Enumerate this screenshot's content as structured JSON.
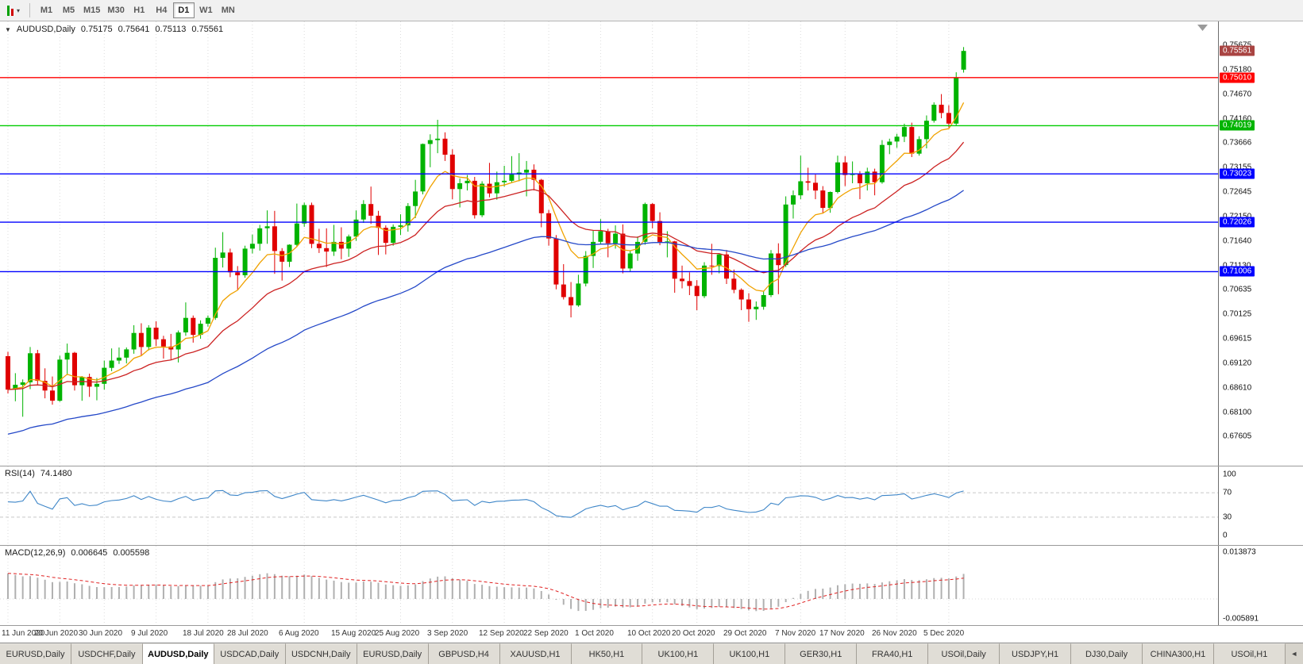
{
  "toolbar": {
    "caret": "▾",
    "timeframes": [
      "M1",
      "M5",
      "M15",
      "M30",
      "H1",
      "H4",
      "D1",
      "W1",
      "MN"
    ],
    "active": "D1"
  },
  "chart": {
    "marker_glyph": "▼",
    "title_symbol": "AUDUSD,Daily",
    "open": "0.75175",
    "high": "0.75641",
    "low": "0.75113",
    "close": "0.75561"
  },
  "chart_data": {
    "type": "candlestick",
    "symbol": "AUDUSD",
    "timeframe": "Daily",
    "price_range": [
      0.67,
      0.7617
    ],
    "current_price": 0.75561,
    "price_ticks": [
      "0.75675",
      "0.75180",
      "0.74670",
      "0.74160",
      "0.73666",
      "0.73155",
      "0.72645",
      "0.72150",
      "0.71640",
      "0.71130",
      "0.70635",
      "0.70125",
      "0.69615",
      "0.69120",
      "0.68610",
      "0.68100",
      "0.67605"
    ],
    "price_tags": [
      {
        "value": 0.75561,
        "label": "0.75561",
        "color": "#a94442",
        "type": "current-price"
      },
      {
        "value": 0.7501,
        "label": "0.75010",
        "color": "#ff0000",
        "type": "resistance-level"
      },
      {
        "value": 0.74019,
        "label": "0.74019",
        "color": "#00b400",
        "type": "support-level"
      },
      {
        "value": 0.73023,
        "label": "0.73023",
        "color": "#0000ff",
        "type": "level"
      },
      {
        "value": 0.72026,
        "label": "0.72026",
        "color": "#0000ff",
        "type": "level"
      },
      {
        "value": 0.71006,
        "label": "0.71006",
        "color": "#0000ff",
        "type": "level"
      }
    ],
    "hlines": [
      {
        "value": 0.7501,
        "color": "#ff0000"
      },
      {
        "value": 0.74019,
        "color": "#00cc00"
      },
      {
        "value": 0.73023,
        "color": "#0000ff"
      },
      {
        "value": 0.72026,
        "color": "#0000ff"
      },
      {
        "value": 0.71006,
        "color": "#0000ff"
      }
    ],
    "date_ticks": [
      {
        "label": "11 Jun 2020",
        "index": 0
      },
      {
        "label": "20 Jun 2020",
        "index": 7
      },
      {
        "label": "30 Jun 2020",
        "index": 13
      },
      {
        "label": "9 Jul 2020",
        "index": 20
      },
      {
        "label": "18 Jul 2020",
        "index": 27
      },
      {
        "label": "28 Jul 2020",
        "index": 33
      },
      {
        "label": "6 Aug 2020",
        "index": 40
      },
      {
        "label": "15 Aug 2020",
        "index": 47
      },
      {
        "label": "25 Aug 2020",
        "index": 53
      },
      {
        "label": "3 Sep 2020",
        "index": 60
      },
      {
        "label": "12 Sep 2020",
        "index": 67
      },
      {
        "label": "22 Sep 2020",
        "index": 73
      },
      {
        "label": "1 Oct 2020",
        "index": 80
      },
      {
        "label": "10 Oct 2020",
        "index": 87
      },
      {
        "label": "20 Oct 2020",
        "index": 93
      },
      {
        "label": "29 Oct 2020",
        "index": 100
      },
      {
        "label": "7 Nov 2020",
        "index": 107
      },
      {
        "label": "17 Nov 2020",
        "index": 113
      },
      {
        "label": "26 Nov 2020",
        "index": 120
      },
      {
        "label": "5 Dec 2020",
        "index": 127
      }
    ],
    "moving_averages": [
      {
        "name": "fast-orange",
        "period": 8,
        "color": "#f0a200"
      },
      {
        "name": "mid-red",
        "period": 21,
        "color": "#cc2222"
      },
      {
        "name": "slow-blue",
        "period": 55,
        "color": "#2448c8",
        "seed": 0.6765
      }
    ],
    "colors": {
      "bull": "#00b300",
      "bear": "#e00000",
      "grid": "#dcdcdc"
    },
    "candles": [
      [
        0.6926,
        0.6935,
        0.6849,
        0.6857
      ],
      [
        0.6857,
        0.6891,
        0.6833,
        0.6867
      ],
      [
        0.6867,
        0.6878,
        0.6801,
        0.6872
      ],
      [
        0.6872,
        0.6945,
        0.6858,
        0.6932
      ],
      [
        0.6932,
        0.6939,
        0.6866,
        0.6875
      ],
      [
        0.6875,
        0.6901,
        0.6839,
        0.6855
      ],
      [
        0.6855,
        0.6884,
        0.6826,
        0.6834
      ],
      [
        0.6834,
        0.6927,
        0.6832,
        0.6919
      ],
      [
        0.6919,
        0.6952,
        0.6887,
        0.6933
      ],
      [
        0.6933,
        0.6935,
        0.6855,
        0.6866
      ],
      [
        0.6866,
        0.6885,
        0.6834,
        0.6883
      ],
      [
        0.6883,
        0.689,
        0.6842,
        0.6863
      ],
      [
        0.6863,
        0.6881,
        0.6835,
        0.6869
      ],
      [
        0.6869,
        0.6917,
        0.6857,
        0.6902
      ],
      [
        0.6902,
        0.6942,
        0.6895,
        0.6917
      ],
      [
        0.6917,
        0.6944,
        0.691,
        0.6923
      ],
      [
        0.6923,
        0.6944,
        0.6911,
        0.694
      ],
      [
        0.694,
        0.699,
        0.6931,
        0.6974
      ],
      [
        0.6974,
        0.6994,
        0.6926,
        0.6945
      ],
      [
        0.6945,
        0.699,
        0.6938,
        0.6985
      ],
      [
        0.6985,
        0.6998,
        0.6947,
        0.6961
      ],
      [
        0.6961,
        0.6968,
        0.6921,
        0.6946
      ],
      [
        0.6946,
        0.6972,
        0.6919,
        0.694
      ],
      [
        0.694,
        0.6979,
        0.6913,
        0.6975
      ],
      [
        0.6975,
        0.7037,
        0.6968,
        0.7005
      ],
      [
        0.7005,
        0.701,
        0.6954,
        0.697
      ],
      [
        0.697,
        0.7,
        0.6962,
        0.6993
      ],
      [
        0.6993,
        0.701,
        0.6987,
        0.7005
      ],
      [
        0.7005,
        0.715,
        0.7001,
        0.7129
      ],
      [
        0.7129,
        0.7182,
        0.7109,
        0.714
      ],
      [
        0.714,
        0.7148,
        0.7089,
        0.7099
      ],
      [
        0.7099,
        0.7112,
        0.7063,
        0.7093
      ],
      [
        0.7093,
        0.7154,
        0.7088,
        0.7148
      ],
      [
        0.7148,
        0.7177,
        0.7138,
        0.7158
      ],
      [
        0.7158,
        0.7197,
        0.7144,
        0.719
      ],
      [
        0.719,
        0.7227,
        0.7158,
        0.7194
      ],
      [
        0.7194,
        0.7226,
        0.7096,
        0.7143
      ],
      [
        0.7143,
        0.7149,
        0.7082,
        0.7121
      ],
      [
        0.7121,
        0.7157,
        0.711,
        0.7156
      ],
      [
        0.7156,
        0.7241,
        0.7152,
        0.72
      ],
      [
        0.72,
        0.7243,
        0.7193,
        0.7238
      ],
      [
        0.7238,
        0.7243,
        0.7149,
        0.7158
      ],
      [
        0.7158,
        0.7189,
        0.7139,
        0.7149
      ],
      [
        0.7149,
        0.719,
        0.711,
        0.7142
      ],
      [
        0.7142,
        0.7197,
        0.7133,
        0.7162
      ],
      [
        0.7162,
        0.7192,
        0.7126,
        0.7148
      ],
      [
        0.7148,
        0.7177,
        0.7131,
        0.7173
      ],
      [
        0.7173,
        0.7227,
        0.7164,
        0.7208
      ],
      [
        0.7208,
        0.7248,
        0.7201,
        0.724
      ],
      [
        0.724,
        0.7276,
        0.7199,
        0.7216
      ],
      [
        0.7216,
        0.7226,
        0.7135,
        0.7191
      ],
      [
        0.7191,
        0.7196,
        0.7136,
        0.716
      ],
      [
        0.716,
        0.7198,
        0.7154,
        0.7193
      ],
      [
        0.7193,
        0.7219,
        0.7176,
        0.7196
      ],
      [
        0.7196,
        0.7242,
        0.7183,
        0.7236
      ],
      [
        0.7236,
        0.729,
        0.7211,
        0.7266
      ],
      [
        0.7266,
        0.7365,
        0.726,
        0.7364
      ],
      [
        0.7364,
        0.7384,
        0.7316,
        0.7372
      ],
      [
        0.7372,
        0.7414,
        0.7345,
        0.7375
      ],
      [
        0.7375,
        0.7388,
        0.7329,
        0.7342
      ],
      [
        0.7342,
        0.7353,
        0.725,
        0.7271
      ],
      [
        0.7271,
        0.7293,
        0.7233,
        0.7283
      ],
      [
        0.7283,
        0.73,
        0.7268,
        0.7288
      ],
      [
        0.7288,
        0.7296,
        0.721,
        0.7217
      ],
      [
        0.7217,
        0.7287,
        0.7213,
        0.7282
      ],
      [
        0.7282,
        0.7325,
        0.7254,
        0.7262
      ],
      [
        0.7262,
        0.7307,
        0.7249,
        0.7285
      ],
      [
        0.7285,
        0.7319,
        0.7276,
        0.7288
      ],
      [
        0.7288,
        0.7339,
        0.7284,
        0.7301
      ],
      [
        0.7301,
        0.7345,
        0.7287,
        0.7305
      ],
      [
        0.7305,
        0.7329,
        0.7256,
        0.7311
      ],
      [
        0.7311,
        0.7322,
        0.7268,
        0.729
      ],
      [
        0.729,
        0.7292,
        0.7192,
        0.7221
      ],
      [
        0.7221,
        0.7228,
        0.7154,
        0.7169
      ],
      [
        0.7169,
        0.7176,
        0.7064,
        0.7074
      ],
      [
        0.7074,
        0.7116,
        0.7043,
        0.7048
      ],
      [
        0.7048,
        0.7079,
        0.7006,
        0.7031
      ],
      [
        0.7031,
        0.7094,
        0.7028,
        0.7076
      ],
      [
        0.7076,
        0.7143,
        0.707,
        0.7133
      ],
      [
        0.7133,
        0.7185,
        0.7108,
        0.7162
      ],
      [
        0.7162,
        0.7209,
        0.7156,
        0.7184
      ],
      [
        0.7184,
        0.7189,
        0.713,
        0.7159
      ],
      [
        0.7159,
        0.7196,
        0.7148,
        0.7179
      ],
      [
        0.7179,
        0.7198,
        0.7097,
        0.7107
      ],
      [
        0.7107,
        0.7144,
        0.71,
        0.7138
      ],
      [
        0.7138,
        0.7173,
        0.7123,
        0.7162
      ],
      [
        0.7162,
        0.7243,
        0.7156,
        0.724
      ],
      [
        0.724,
        0.7242,
        0.719,
        0.7205
      ],
      [
        0.7205,
        0.7223,
        0.7155,
        0.7162
      ],
      [
        0.7162,
        0.7184,
        0.713,
        0.7163
      ],
      [
        0.7163,
        0.7164,
        0.7057,
        0.7086
      ],
      [
        0.7086,
        0.7113,
        0.7066,
        0.7081
      ],
      [
        0.7081,
        0.7099,
        0.7052,
        0.7071
      ],
      [
        0.7071,
        0.7083,
        0.7021,
        0.705
      ],
      [
        0.705,
        0.712,
        0.7046,
        0.7113
      ],
      [
        0.7113,
        0.7158,
        0.7094,
        0.7112
      ],
      [
        0.7112,
        0.7137,
        0.7097,
        0.7136
      ],
      [
        0.7136,
        0.7145,
        0.7075,
        0.7086
      ],
      [
        0.7086,
        0.7105,
        0.7056,
        0.7063
      ],
      [
        0.7063,
        0.7066,
        0.7021,
        0.7043
      ],
      [
        0.7043,
        0.7056,
        0.6997,
        0.7023
      ],
      [
        0.7023,
        0.7039,
        0.7001,
        0.7028
      ],
      [
        0.7028,
        0.706,
        0.7022,
        0.7052
      ],
      [
        0.7052,
        0.7145,
        0.7048,
        0.7138
      ],
      [
        0.7138,
        0.7159,
        0.7054,
        0.7114
      ],
      [
        0.7114,
        0.7256,
        0.711,
        0.7239
      ],
      [
        0.7239,
        0.7268,
        0.721,
        0.7258
      ],
      [
        0.7258,
        0.734,
        0.725,
        0.7287
      ],
      [
        0.7287,
        0.7315,
        0.7268,
        0.7284
      ],
      [
        0.7284,
        0.7301,
        0.725,
        0.7268
      ],
      [
        0.7268,
        0.7277,
        0.7221,
        0.7232
      ],
      [
        0.7232,
        0.7266,
        0.7222,
        0.7265
      ],
      [
        0.7265,
        0.734,
        0.7262,
        0.7326
      ],
      [
        0.7326,
        0.7339,
        0.7277,
        0.73
      ],
      [
        0.73,
        0.7328,
        0.7283,
        0.7302
      ],
      [
        0.7302,
        0.7308,
        0.725,
        0.7283
      ],
      [
        0.7283,
        0.7315,
        0.7268,
        0.7307
      ],
      [
        0.7307,
        0.7313,
        0.7258,
        0.7285
      ],
      [
        0.7285,
        0.7372,
        0.7282,
        0.7362
      ],
      [
        0.7362,
        0.7375,
        0.7343,
        0.7369
      ],
      [
        0.7369,
        0.7385,
        0.7356,
        0.7379
      ],
      [
        0.7379,
        0.7406,
        0.7368,
        0.7399
      ],
      [
        0.7399,
        0.7408,
        0.7337,
        0.7344
      ],
      [
        0.7344,
        0.738,
        0.734,
        0.7374
      ],
      [
        0.7374,
        0.7423,
        0.7355,
        0.7412
      ],
      [
        0.7412,
        0.745,
        0.7408,
        0.7445
      ],
      [
        0.7445,
        0.7467,
        0.7417,
        0.7428
      ],
      [
        0.7428,
        0.7444,
        0.7398,
        0.7406
      ],
      [
        0.7406,
        0.7512,
        0.7402,
        0.7501
      ],
      [
        0.75175,
        0.75641,
        0.75113,
        0.75561
      ]
    ]
  },
  "rsi": {
    "label": "RSI(14)",
    "value": "74.1480",
    "period": 14,
    "levels": [
      "100",
      "70",
      "30",
      "0"
    ],
    "upper_level": 70,
    "lower_level": 30,
    "color": "#3e86c8",
    "range": [
      0,
      100
    ]
  },
  "macd": {
    "label": "MACD(12,26,9)",
    "main_value": "0.006645",
    "signal_value": "0.005598",
    "axis_max_label": "0.013873",
    "axis_min_label": "-0.005891",
    "axis_max": 0.013873,
    "axis_min": -0.005891,
    "histogram_color": "#b0b0b0",
    "signal_color": "#e02020"
  },
  "bottom_tabs": {
    "items": [
      "EURUSD,Daily",
      "USDCHF,Daily",
      "AUDUSD,Daily",
      "USDCAD,Daily",
      "USDCNH,Daily",
      "EURUSD,Daily",
      "GBPUSD,H4",
      "XAUUSD,H1",
      "HK50,H1",
      "UK100,H1",
      "UK100,H1",
      "GER30,H1",
      "FRA40,H1",
      "USOil,Daily",
      "USDJPY,H1",
      "DJ30,Daily",
      "CHINA300,H1",
      "USOil,H1"
    ],
    "active_index": 2,
    "scroll_left_glyph": "◄"
  }
}
